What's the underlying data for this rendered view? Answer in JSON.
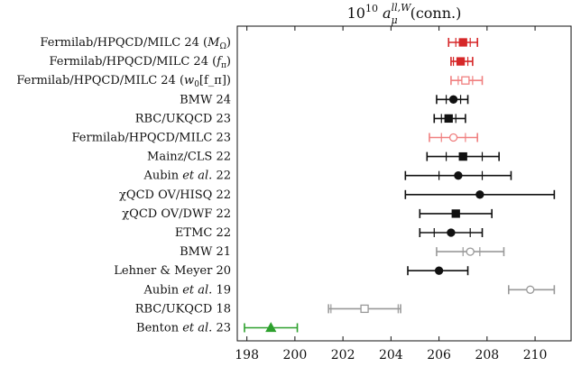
{
  "chart_data": {
    "type": "scatter",
    "title_main": "10",
    "title_exp": "10",
    "title_a": " a",
    "title_sup": "ll,W",
    "title_sub": "μ",
    "title_tail": "(conn.)",
    "xlim": [
      197.6,
      211.5
    ],
    "xticks": [
      198,
      200,
      202,
      204,
      206,
      208,
      210
    ],
    "xtick_labels": [
      "198",
      "200",
      "202",
      "204",
      "206",
      "208",
      "210"
    ],
    "rows": [
      {
        "label_pre": "Fermilab/HPQCD/MILC 24 (",
        "label_mid": "M",
        "label_sub": "Ω",
        "label_post": ")",
        "value": 207.0,
        "stat": [
          206.7,
          207.3
        ],
        "total": [
          206.4,
          207.6
        ],
        "color": "#d62728",
        "marker": "square",
        "filled": true
      },
      {
        "label_pre": "Fermilab/HPQCD/MILC 24 (",
        "label_mid": "f",
        "label_sub": "π",
        "label_post": ")",
        "value": 206.9,
        "stat": [
          206.6,
          207.2
        ],
        "total": [
          206.5,
          207.4
        ],
        "color": "#d62728",
        "marker": "square",
        "filled": true
      },
      {
        "label_pre": "Fermilab/HPQCD/MILC 24 (",
        "label_mid": "w",
        "label_sub": "0",
        "label_post": "[f_π])",
        "value": 207.1,
        "stat": [
          206.8,
          207.4
        ],
        "total": [
          206.5,
          207.8
        ],
        "color": "#f08080",
        "marker": "square",
        "filled": false
      },
      {
        "label_pre": "BMW 24",
        "label_mid": "",
        "label_sub": "",
        "label_post": "",
        "value": 206.6,
        "stat": [
          206.3,
          206.9
        ],
        "total": [
          205.9,
          207.2
        ],
        "color": "#111111",
        "marker": "circle",
        "filled": true
      },
      {
        "label_pre": "RBC/UKQCD 23",
        "label_mid": "",
        "label_sub": "",
        "label_post": "",
        "value": 206.4,
        "stat": [
          206.1,
          206.7
        ],
        "total": [
          205.8,
          207.1
        ],
        "color": "#111111",
        "marker": "square",
        "filled": true
      },
      {
        "label_pre": "Fermilab/HPQCD/MILC 23",
        "label_mid": "",
        "label_sub": "",
        "label_post": "",
        "value": 206.6,
        "stat": [
          206.1,
          207.1
        ],
        "total": [
          205.6,
          207.6
        ],
        "color": "#f08080",
        "marker": "circle",
        "filled": false
      },
      {
        "label_pre": "Mainz/CLS 22",
        "label_mid": "",
        "label_sub": "",
        "label_post": "",
        "value": 207.0,
        "stat": [
          206.3,
          207.8
        ],
        "total": [
          205.5,
          208.5
        ],
        "color": "#111111",
        "marker": "square",
        "filled": true
      },
      {
        "label_pre": "Aubin ",
        "label_mid": "et al.",
        "label_sub": "",
        "label_post": " 22",
        "value": 206.8,
        "stat": [
          206.0,
          207.8
        ],
        "total": [
          204.6,
          209.0
        ],
        "color": "#111111",
        "marker": "circle",
        "filled": true
      },
      {
        "label_pre": "χQCD OV/HISQ 22",
        "label_mid": "",
        "label_sub": "",
        "label_post": "",
        "value": 207.7,
        "stat": [
          207.7,
          207.7
        ],
        "total": [
          204.6,
          210.8
        ],
        "color": "#111111",
        "marker": "circle",
        "filled": true
      },
      {
        "label_pre": "χQCD OV/DWF 22",
        "label_mid": "",
        "label_sub": "",
        "label_post": "",
        "value": 206.7,
        "stat": [
          206.7,
          206.7
        ],
        "total": [
          205.2,
          208.2
        ],
        "color": "#111111",
        "marker": "square",
        "filled": true
      },
      {
        "label_pre": "ETMC 22",
        "label_mid": "",
        "label_sub": "",
        "label_post": "",
        "value": 206.5,
        "stat": [
          205.8,
          207.3
        ],
        "total": [
          205.2,
          207.8
        ],
        "color": "#111111",
        "marker": "circle",
        "filled": true
      },
      {
        "label_pre": "BMW 21",
        "label_mid": "",
        "label_sub": "",
        "label_post": "",
        "value": 207.3,
        "stat": [
          207.0,
          207.7
        ],
        "total": [
          205.9,
          208.7
        ],
        "color": "#999999",
        "marker": "circle",
        "filled": false
      },
      {
        "label_pre": "Lehner & Meyer 20",
        "label_mid": "",
        "label_sub": "",
        "label_post": "",
        "value": 206.0,
        "stat": [
          206.0,
          206.0
        ],
        "total": [
          204.7,
          207.2
        ],
        "color": "#111111",
        "marker": "circle",
        "filled": true
      },
      {
        "label_pre": "Aubin ",
        "label_mid": "et al.",
        "label_sub": "",
        "label_post": " 19",
        "value": 209.8,
        "stat": [
          209.8,
          209.8
        ],
        "total": [
          208.9,
          210.8
        ],
        "color": "#999999",
        "marker": "circle",
        "filled": false
      },
      {
        "label_pre": "RBC/UKQCD 18",
        "label_mid": "",
        "label_sub": "",
        "label_post": "",
        "value": 202.9,
        "stat": [
          201.5,
          204.3
        ],
        "total": [
          201.4,
          204.4
        ],
        "color": "#999999",
        "marker": "square",
        "filled": false
      },
      {
        "label_pre": "Benton ",
        "label_mid": "et al.",
        "label_sub": "",
        "label_post": " 23",
        "value": 199.0,
        "stat": [
          199.0,
          199.0
        ],
        "total": [
          197.9,
          200.1
        ],
        "color": "#2ca02c",
        "marker": "triangle",
        "filled": true
      }
    ]
  }
}
